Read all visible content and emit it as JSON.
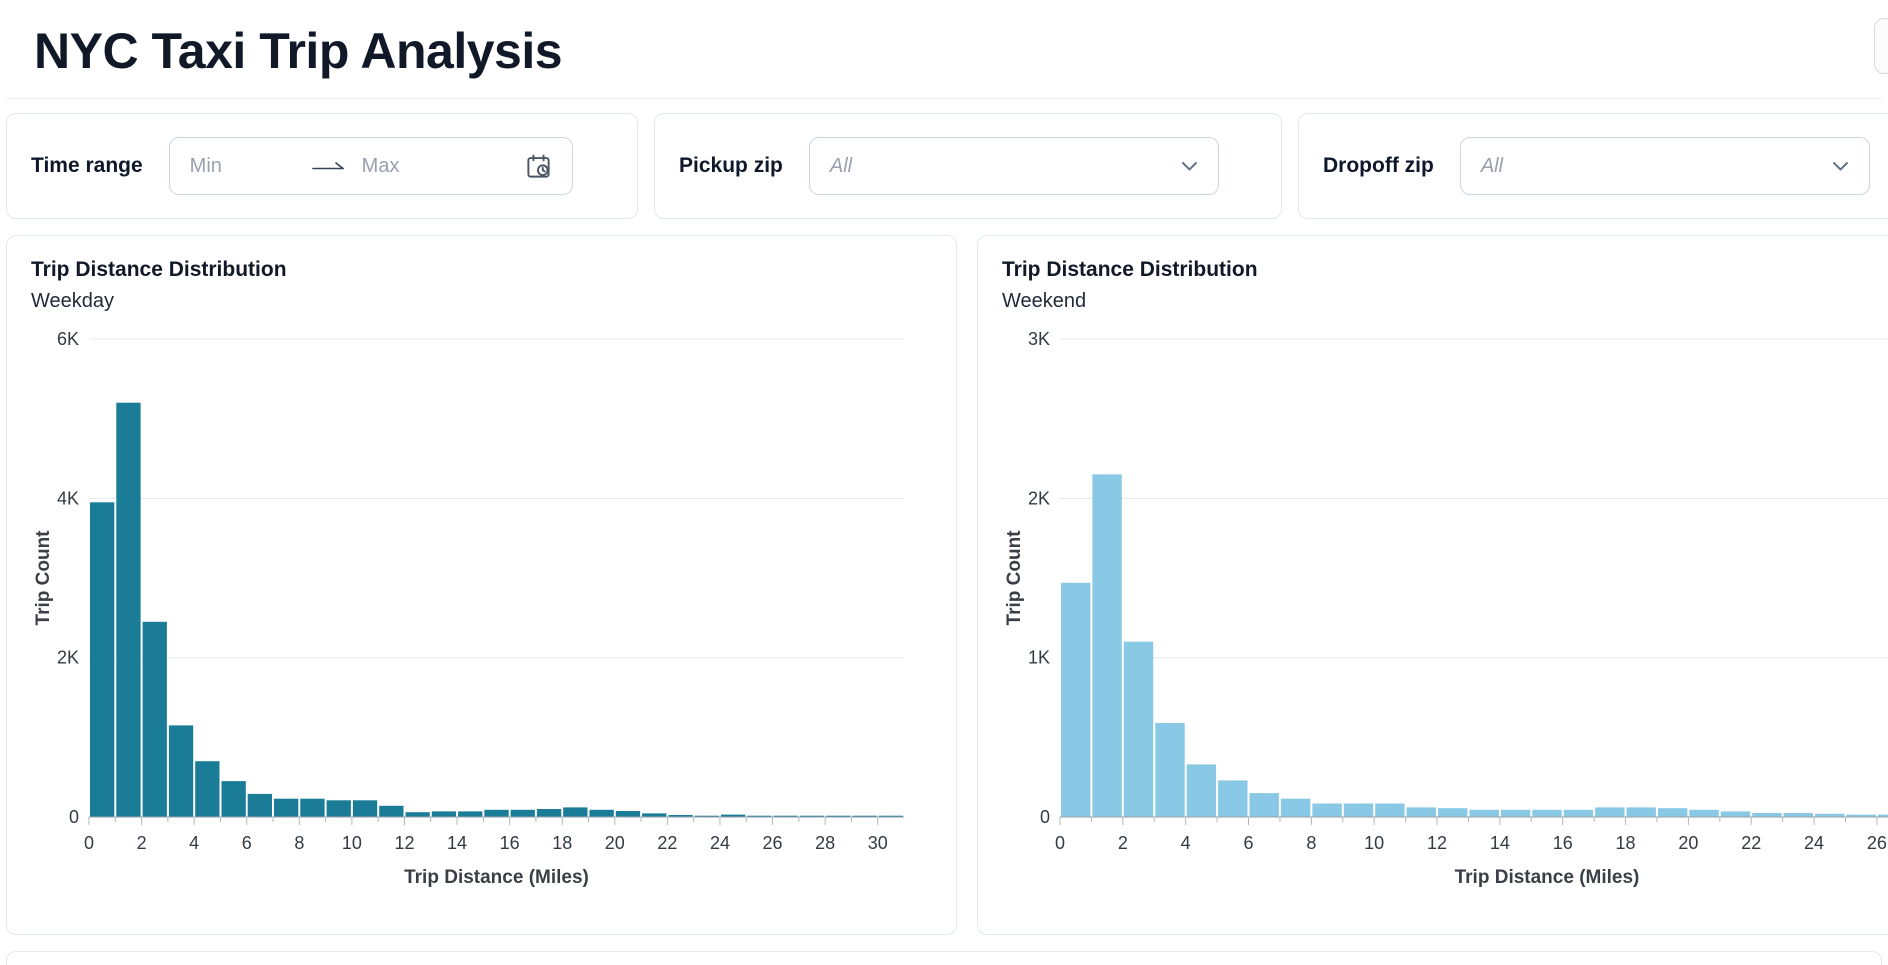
{
  "header": {
    "title": "NYC Taxi Trip Analysis"
  },
  "filters": {
    "time_range": {
      "label": "Time range",
      "min_placeholder": "Min",
      "max_placeholder": "Max"
    },
    "pickup_zip": {
      "label": "Pickup zip",
      "value": "All"
    },
    "dropoff_zip": {
      "label": "Dropoff zip",
      "value": "All"
    }
  },
  "chart_data": [
    {
      "type": "bar",
      "title": "Trip Distance Distribution",
      "subtitle": "Weekday",
      "xlabel": "Trip Distance (Miles)",
      "ylabel": "Trip Count",
      "bar_color": "#1b7c97",
      "bin_width_miles": 1,
      "x_bin_start": 0,
      "values": [
        3950,
        5200,
        2450,
        1150,
        700,
        450,
        290,
        230,
        230,
        210,
        210,
        140,
        60,
        70,
        70,
        90,
        90,
        100,
        120,
        90,
        75,
        45,
        25,
        15,
        30,
        15,
        10,
        10,
        10,
        10,
        5
      ],
      "xlim": [
        0,
        31
      ],
      "ylim": [
        0,
        6000
      ],
      "yticks": [
        {
          "value": 0,
          "label": "0"
        },
        {
          "value": 2000,
          "label": "2K"
        },
        {
          "value": 4000,
          "label": "4K"
        },
        {
          "value": 6000,
          "label": "6K"
        }
      ],
      "xtick_major_step": 2,
      "xtick_minor_step": 1,
      "grid": true,
      "legend": "none"
    },
    {
      "type": "bar",
      "title": "Trip Distance Distribution",
      "subtitle": "Weekend",
      "xlabel": "Trip Distance (Miles)",
      "ylabel": "Trip Count",
      "bar_color": "#8ac9e6",
      "bin_width_miles": 1,
      "x_bin_start": 0,
      "values": [
        1470,
        2150,
        1100,
        590,
        330,
        230,
        150,
        115,
        85,
        85,
        85,
        60,
        55,
        45,
        45,
        45,
        45,
        60,
        60,
        55,
        45,
        35,
        25,
        25,
        20,
        15,
        15,
        10,
        10,
        10,
        5
      ],
      "xlim": [
        0,
        31
      ],
      "ylim": [
        0,
        3000
      ],
      "yticks": [
        {
          "value": 0,
          "label": "0"
        },
        {
          "value": 1000,
          "label": "1K"
        },
        {
          "value": 2000,
          "label": "2K"
        },
        {
          "value": 3000,
          "label": "3K"
        }
      ],
      "xtick_major_step": 2,
      "xtick_minor_step": 1,
      "grid": true,
      "legend": "none"
    }
  ]
}
